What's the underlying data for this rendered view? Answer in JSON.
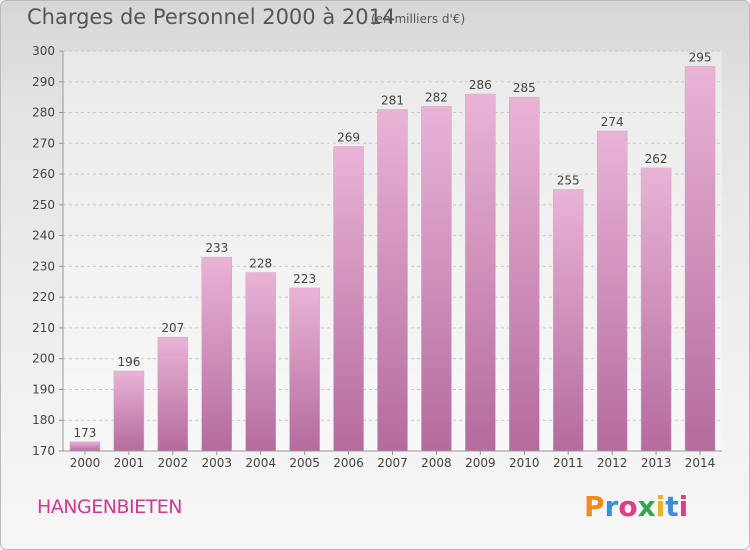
{
  "header": {
    "title": "Charges de Personnel 2000 à 2014",
    "subtitle": "(en milliers d'€)"
  },
  "footer": {
    "commune": "HANGENBIETEN",
    "logo": "Proxiti"
  },
  "colors": {
    "bar_light": "#e9b3d6",
    "bar_dark": "#b46b9d",
    "commune_text": "#cf3a8e",
    "logo_letters": [
      "#f08a1d",
      "#3a8fd8",
      "#e23b86",
      "#2fa84f",
      "#f0b01d",
      "#3a8fd8",
      "#e23b86"
    ]
  },
  "chart_data": {
    "type": "bar",
    "categories": [
      "2000",
      "2001",
      "2002",
      "2003",
      "2004",
      "2005",
      "2006",
      "2007",
      "2008",
      "2009",
      "2010",
      "2011",
      "2012",
      "2013",
      "2014"
    ],
    "values": [
      173,
      196,
      207,
      233,
      228,
      223,
      269,
      281,
      282,
      286,
      285,
      255,
      274,
      262,
      295
    ],
    "ylim": [
      170,
      300
    ],
    "yticks": [
      170,
      180,
      190,
      200,
      210,
      220,
      230,
      240,
      250,
      260,
      270,
      280,
      290,
      300
    ],
    "title": "Charges de Personnel 2000 à 2014",
    "ylabel": "(en milliers d'€)",
    "grid": true,
    "data_labels": true
  }
}
